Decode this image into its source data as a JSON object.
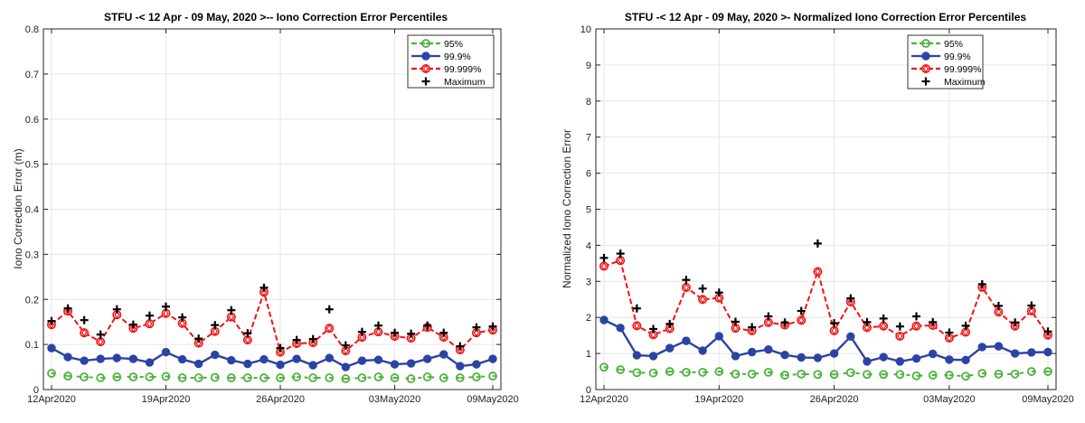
{
  "chart_data": [
    {
      "type": "line",
      "title": "STFU -< 12 Apr - 09 May, 2020 >-- Iono Correction Error Percentiles",
      "xlabel": "",
      "ylabel": "Iono Correction Error (m)",
      "ylim": [
        0,
        0.8
      ],
      "yticks": [
        "0",
        "0.1",
        "0.2",
        "0.3",
        "0.4",
        "0.5",
        "0.6",
        "0.7",
        "0.8"
      ],
      "ytick_values": [
        0,
        0.1,
        0.2,
        0.3,
        0.4,
        0.5,
        0.6,
        0.7,
        0.8
      ],
      "xticks": [
        "12Apr2020",
        "19Apr2020",
        "26Apr2020",
        "03May2020",
        "09May2020"
      ],
      "xtick_days": [
        0,
        7,
        14,
        21,
        27
      ],
      "x_days": [
        0,
        1,
        2,
        3,
        4,
        5,
        6,
        7,
        8,
        9,
        10,
        11,
        12,
        13,
        14,
        15,
        16,
        17,
        18,
        19,
        20,
        21,
        22,
        23,
        24,
        25,
        26,
        27
      ],
      "grid": true,
      "legend_position": "top-right",
      "series": [
        {
          "name": "95%",
          "color": "#4db33d",
          "style": "dashed",
          "marker": "open-circle-tail",
          "values": [
            0.036,
            0.03,
            0.028,
            0.026,
            0.028,
            0.028,
            0.028,
            0.029,
            0.026,
            0.026,
            0.027,
            0.026,
            0.026,
            0.026,
            0.026,
            0.028,
            0.026,
            0.026,
            0.024,
            0.026,
            0.028,
            0.026,
            0.024,
            0.028,
            0.026,
            0.026,
            0.028,
            0.03
          ]
        },
        {
          "name": "99.9%",
          "color": "#2b44a3",
          "style": "solid",
          "marker": "filled-circle",
          "values": [
            0.092,
            0.072,
            0.064,
            0.068,
            0.07,
            0.068,
            0.06,
            0.083,
            0.067,
            0.057,
            0.077,
            0.065,
            0.057,
            0.067,
            0.055,
            0.068,
            0.054,
            0.07,
            0.05,
            0.064,
            0.066,
            0.056,
            0.058,
            0.068,
            0.078,
            0.052,
            0.056,
            0.068
          ]
        },
        {
          "name": "99.999%",
          "color": "#f01414",
          "style": "dashed",
          "marker": "open-diamond-circle",
          "values": [
            0.144,
            0.174,
            0.126,
            0.106,
            0.166,
            0.136,
            0.146,
            0.169,
            0.147,
            0.103,
            0.129,
            0.161,
            0.11,
            0.216,
            0.083,
            0.102,
            0.104,
            0.136,
            0.086,
            0.116,
            0.128,
            0.118,
            0.114,
            0.138,
            0.116,
            0.088,
            0.126,
            0.132
          ]
        },
        {
          "name": "Maximum",
          "color": "#000000",
          "style": "none",
          "marker": "plus",
          "values": [
            0.152,
            0.18,
            0.154,
            0.122,
            0.178,
            0.144,
            0.164,
            0.184,
            0.16,
            0.113,
            0.143,
            0.176,
            0.125,
            0.226,
            0.092,
            0.11,
            0.112,
            0.178,
            0.098,
            0.128,
            0.142,
            0.126,
            0.124,
            0.142,
            0.126,
            0.096,
            0.138,
            0.14
          ]
        }
      ]
    },
    {
      "type": "line",
      "title": "STFU -< 12 Apr - 09 May, 2020 >- Normalized Iono Correction Error Percentiles",
      "xlabel": "",
      "ylabel": "Normalized Iono Correction Error",
      "ylim": [
        0,
        10
      ],
      "yticks": [
        "0",
        "1",
        "2",
        "3",
        "4",
        "5",
        "6",
        "7",
        "8",
        "9",
        "10"
      ],
      "ytick_values": [
        0,
        1,
        2,
        3,
        4,
        5,
        6,
        7,
        8,
        9,
        10
      ],
      "xticks": [
        "12Apr2020",
        "19Apr2020",
        "26Apr2020",
        "03May2020",
        "09May2020"
      ],
      "xtick_days": [
        0,
        7,
        14,
        21,
        27
      ],
      "x_days": [
        0,
        1,
        2,
        3,
        4,
        5,
        6,
        7,
        8,
        9,
        10,
        11,
        12,
        13,
        14,
        15,
        16,
        17,
        18,
        19,
        20,
        21,
        22,
        23,
        24,
        25,
        26,
        27
      ],
      "grid": true,
      "legend_position": "top-right",
      "series": [
        {
          "name": "95%",
          "color": "#4db33d",
          "style": "dashed",
          "marker": "open-circle-tail",
          "values": [
            0.62,
            0.55,
            0.47,
            0.46,
            0.5,
            0.48,
            0.48,
            0.5,
            0.43,
            0.43,
            0.48,
            0.4,
            0.43,
            0.42,
            0.42,
            0.47,
            0.42,
            0.42,
            0.42,
            0.38,
            0.4,
            0.4,
            0.37,
            0.45,
            0.43,
            0.43,
            0.5,
            0.5
          ]
        },
        {
          "name": "99.9%",
          "color": "#2b44a3",
          "style": "solid",
          "marker": "filled-circle",
          "values": [
            1.93,
            1.71,
            0.95,
            0.93,
            1.15,
            1.35,
            1.08,
            1.48,
            0.93,
            1.04,
            1.11,
            0.96,
            0.89,
            0.88,
            1.0,
            1.47,
            0.78,
            0.9,
            0.78,
            0.86,
            0.99,
            0.83,
            0.82,
            1.18,
            1.2,
            1.0,
            1.03,
            1.04
          ]
        },
        {
          "name": "99.999%",
          "color": "#f01414",
          "style": "dashed",
          "marker": "open-diamond-circle",
          "values": [
            3.42,
            3.58,
            1.77,
            1.52,
            1.69,
            2.83,
            2.5,
            2.54,
            1.7,
            1.63,
            1.86,
            1.79,
            1.92,
            3.27,
            1.63,
            2.43,
            1.72,
            1.76,
            1.48,
            1.76,
            1.78,
            1.43,
            1.59,
            2.84,
            2.15,
            1.76,
            2.18,
            1.51
          ]
        },
        {
          "name": "Maximum",
          "color": "#000000",
          "style": "none",
          "marker": "plus",
          "values": [
            3.65,
            3.77,
            2.25,
            1.68,
            1.82,
            3.04,
            2.8,
            2.69,
            1.88,
            1.73,
            2.03,
            1.86,
            2.18,
            4.05,
            1.84,
            2.53,
            1.87,
            1.97,
            1.75,
            2.03,
            1.87,
            1.58,
            1.77,
            2.92,
            2.32,
            1.86,
            2.33,
            1.61
          ]
        }
      ]
    }
  ]
}
